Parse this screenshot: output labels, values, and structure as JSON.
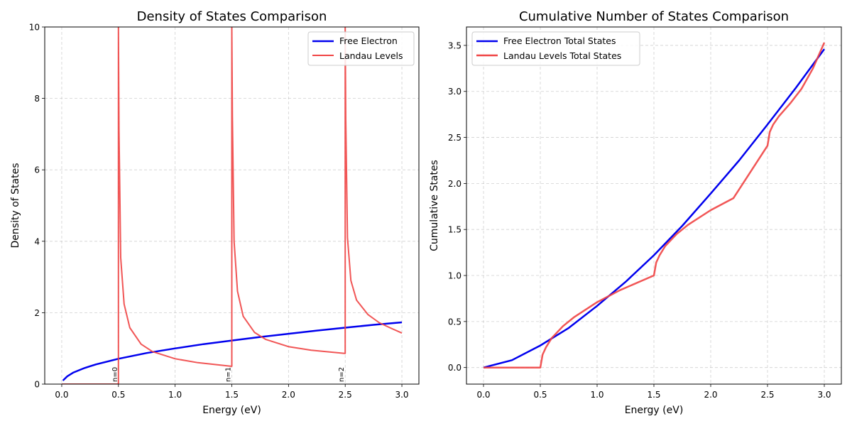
{
  "chart_data": [
    {
      "type": "line",
      "title": "Density of States Comparison",
      "xlabel": "Energy (eV)",
      "ylabel": "Density of States",
      "xlim": [
        -0.15,
        3.15
      ],
      "ylim": [
        0,
        10
      ],
      "xticks": [
        0.0,
        0.5,
        1.0,
        1.5,
        2.0,
        2.5,
        3.0
      ],
      "xtick_labels": [
        "0.0",
        "0.5",
        "1.0",
        "1.5",
        "2.0",
        "2.5",
        "3.0"
      ],
      "yticks": [
        0,
        2,
        4,
        6,
        8,
        10
      ],
      "ytick_labels": [
        "0",
        "2",
        "4",
        "6",
        "8",
        "10"
      ],
      "grid": true,
      "legend_position": "top-right",
      "series": [
        {
          "name": "Free Electron",
          "color": "#0000ee",
          "x": [
            0.01,
            0.05,
            0.1,
            0.2,
            0.3,
            0.5,
            0.75,
            1.0,
            1.25,
            1.5,
            1.75,
            2.0,
            2.25,
            2.5,
            2.75,
            3.0
          ],
          "y": [
            0.1,
            0.22,
            0.32,
            0.45,
            0.55,
            0.71,
            0.87,
            1.0,
            1.12,
            1.22,
            1.32,
            1.41,
            1.5,
            1.58,
            1.66,
            1.73
          ]
        },
        {
          "name": "Landau Levels",
          "color": "#f04444",
          "x": [
            0.0,
            0.495,
            0.5,
            0.5,
            0.505,
            0.52,
            0.55,
            0.6,
            0.7,
            0.8,
            1.0,
            1.2,
            1.495,
            1.5,
            1.5,
            1.505,
            1.52,
            1.55,
            1.6,
            1.7,
            1.8,
            2.0,
            2.2,
            2.495,
            2.5,
            2.5,
            2.505,
            2.52,
            2.55,
            2.6,
            2.7,
            2.8,
            2.9,
            3.0
          ],
          "y": [
            0.0,
            0.0,
            0.0,
            10.0,
            7.1,
            3.54,
            2.24,
            1.58,
            1.12,
            0.91,
            0.71,
            0.6,
            0.5,
            0.5,
            10.0,
            7.5,
            4.0,
            2.6,
            1.9,
            1.45,
            1.25,
            1.05,
            0.95,
            0.86,
            0.86,
            10.0,
            7.4,
            4.1,
            2.9,
            2.35,
            1.95,
            1.72,
            1.57,
            1.43
          ]
        }
      ],
      "annotations": [
        {
          "text": "n=0",
          "x": 0.5
        },
        {
          "text": "n=1",
          "x": 1.5
        },
        {
          "text": "n=2",
          "x": 2.5
        }
      ]
    },
    {
      "type": "line",
      "title": "Cumulative Number of States Comparison",
      "xlabel": "Energy (eV)",
      "ylabel": "Cumulative States",
      "xlim": [
        -0.15,
        3.15
      ],
      "ylim": [
        -0.18,
        3.7
      ],
      "xticks": [
        0.0,
        0.5,
        1.0,
        1.5,
        2.0,
        2.5,
        3.0
      ],
      "xtick_labels": [
        "0.0",
        "0.5",
        "1.0",
        "1.5",
        "2.0",
        "2.5",
        "3.0"
      ],
      "yticks": [
        0.0,
        0.5,
        1.0,
        1.5,
        2.0,
        2.5,
        3.0,
        3.5
      ],
      "ytick_labels": [
        "0.0",
        "0.5",
        "1.0",
        "1.5",
        "2.0",
        "2.5",
        "3.0",
        "3.5"
      ],
      "grid": true,
      "legend_position": "top-left",
      "series": [
        {
          "name": "Free Electron Total States",
          "color": "#0000ee",
          "x": [
            0.0,
            0.25,
            0.5,
            0.75,
            1.0,
            1.25,
            1.5,
            1.75,
            2.0,
            2.25,
            2.5,
            2.75,
            3.0
          ],
          "y": [
            0.0,
            0.08,
            0.24,
            0.43,
            0.67,
            0.93,
            1.22,
            1.54,
            1.89,
            2.25,
            2.64,
            3.04,
            3.46
          ]
        },
        {
          "name": "Landau Levels Total States",
          "color": "#f04444",
          "x": [
            0.0,
            0.5,
            0.52,
            0.55,
            0.6,
            0.7,
            0.8,
            1.0,
            1.2,
            1.5,
            1.52,
            1.55,
            1.6,
            1.7,
            1.8,
            2.0,
            2.2,
            2.5,
            2.52,
            2.55,
            2.6,
            2.7,
            2.8,
            2.9,
            3.0
          ],
          "y": [
            0.0,
            0.0,
            0.14,
            0.22,
            0.32,
            0.45,
            0.55,
            0.71,
            0.84,
            1.0,
            1.14,
            1.22,
            1.32,
            1.45,
            1.55,
            1.71,
            1.84,
            2.41,
            2.56,
            2.64,
            2.73,
            2.87,
            3.03,
            3.25,
            3.53
          ]
        }
      ]
    }
  ]
}
